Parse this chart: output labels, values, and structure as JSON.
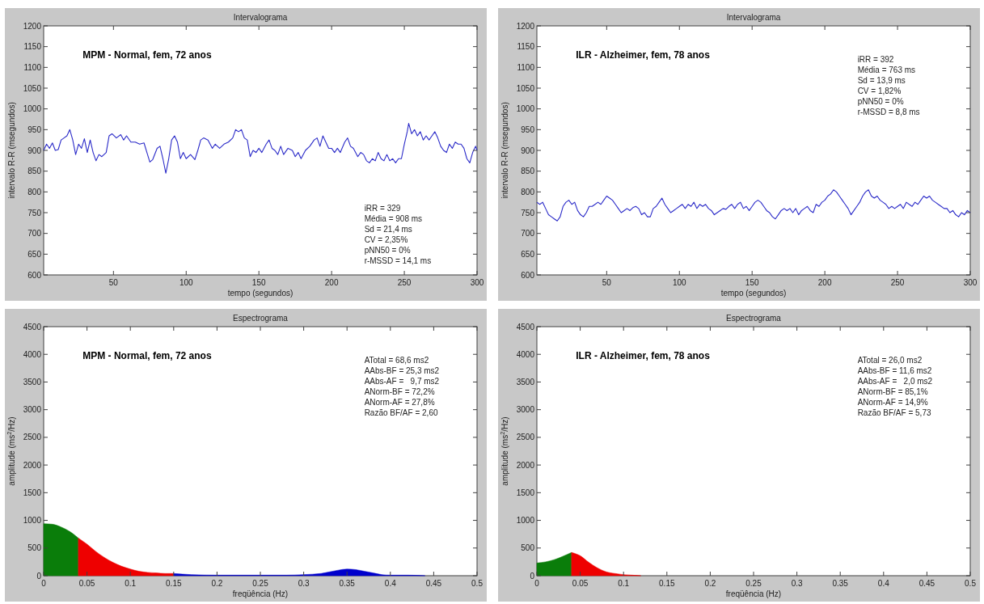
{
  "chart_data": [
    {
      "type": "line",
      "title": "Intervalograma",
      "xlabel": "tempo (segundos)",
      "ylabel": "intervalo R-R (msegundos)",
      "xlim": [
        2,
        300
      ],
      "xticks": [
        50,
        100,
        150,
        200,
        250,
        300
      ],
      "ylim": [
        600,
        1200
      ],
      "yticks": [
        600,
        650,
        700,
        750,
        800,
        850,
        900,
        950,
        1000,
        1050,
        1100,
        1150,
        1200
      ],
      "annotations": [
        "MPM - Normal, fem, 72 anos",
        "iRR = 329",
        "Média = 908 ms",
        "Sd = 21,4 ms",
        "CV = 2,35%",
        "pNN50 = 0%",
        "r-MSSD = 14,1 ms"
      ],
      "series": [
        {
          "color": "#2a2ac8",
          "x": [
            2,
            4,
            6,
            8,
            10,
            12,
            14,
            16,
            18,
            20,
            22,
            24,
            26,
            28,
            30,
            32,
            34,
            36,
            38,
            40,
            42,
            45,
            47,
            49,
            52,
            55,
            57,
            59,
            62,
            65,
            68,
            71,
            73,
            75,
            77,
            80,
            82,
            84,
            86,
            88,
            90,
            92,
            94,
            96,
            98,
            100,
            103,
            106,
            108,
            110,
            112,
            115,
            118,
            120,
            123,
            126,
            129,
            132,
            134,
            136,
            138,
            140,
            142,
            144,
            146,
            148,
            150,
            152,
            155,
            157,
            159,
            161,
            163,
            165,
            167,
            170,
            173,
            175,
            177,
            179,
            182,
            185,
            188,
            190,
            192,
            194,
            196,
            198,
            200,
            202,
            204,
            206,
            209,
            211,
            213,
            215,
            218,
            220,
            222,
            224,
            226,
            228,
            230,
            232,
            234,
            236,
            238,
            240,
            242,
            244,
            246,
            248,
            250,
            252,
            253,
            255,
            257,
            259,
            261,
            263,
            265,
            267,
            269,
            271,
            273,
            275,
            277,
            279,
            281,
            283,
            285,
            287,
            289,
            291,
            293,
            295,
            297,
            299,
            300
          ],
          "values": [
            900,
            915,
            905,
            918,
            900,
            902,
            925,
            930,
            935,
            950,
            925,
            890,
            915,
            905,
            928,
            895,
            925,
            895,
            875,
            890,
            885,
            895,
            935,
            940,
            930,
            938,
            925,
            935,
            920,
            920,
            915,
            918,
            895,
            872,
            878,
            905,
            910,
            880,
            845,
            880,
            925,
            935,
            920,
            880,
            895,
            880,
            890,
            878,
            900,
            925,
            930,
            925,
            905,
            915,
            905,
            915,
            920,
            930,
            950,
            945,
            950,
            930,
            925,
            885,
            900,
            895,
            905,
            895,
            915,
            925,
            905,
            900,
            890,
            910,
            890,
            905,
            900,
            885,
            895,
            880,
            900,
            910,
            925,
            930,
            910,
            935,
            920,
            905,
            905,
            895,
            905,
            895,
            920,
            930,
            910,
            905,
            885,
            895,
            890,
            875,
            870,
            880,
            875,
            895,
            880,
            875,
            890,
            875,
            880,
            870,
            880,
            880,
            915,
            945,
            965,
            940,
            950,
            935,
            945,
            925,
            935,
            925,
            935,
            945,
            930,
            910,
            900,
            895,
            915,
            905,
            920,
            915,
            915,
            905,
            880,
            870,
            895,
            910,
            900
          ]
        }
      ]
    },
    {
      "type": "line",
      "title": "Intervalograma",
      "xlabel": "tempo (segundos)",
      "ylabel": "intervalo R-R (msegundos)",
      "xlim": [
        2,
        300
      ],
      "xticks": [
        50,
        100,
        150,
        200,
        250,
        300
      ],
      "ylim": [
        600,
        1200
      ],
      "yticks": [
        600,
        650,
        700,
        750,
        800,
        850,
        900,
        950,
        1000,
        1050,
        1100,
        1150,
        1200
      ],
      "annotations": [
        "ILR - Alzheimer, fem, 78 anos",
        "iRR = 392",
        "Média = 763 ms",
        "Sd = 13,9 ms",
        "CV = 1,82%",
        "pNN50 = 0%",
        "r-MSSD = 8,8 ms"
      ],
      "series": [
        {
          "color": "#2a2ac8",
          "x": [
            2,
            4,
            6,
            8,
            10,
            12,
            14,
            16,
            18,
            20,
            22,
            24,
            26,
            28,
            30,
            32,
            34,
            36,
            38,
            40,
            42,
            44,
            46,
            48,
            50,
            52,
            54,
            56,
            58,
            60,
            62,
            64,
            66,
            68,
            70,
            72,
            74,
            76,
            78,
            80,
            82,
            84,
            86,
            88,
            90,
            92,
            94,
            96,
            98,
            100,
            102,
            104,
            106,
            108,
            110,
            112,
            114,
            116,
            118,
            120,
            122,
            124,
            126,
            128,
            130,
            132,
            134,
            136,
            138,
            140,
            142,
            144,
            146,
            148,
            150,
            152,
            154,
            156,
            158,
            160,
            162,
            164,
            166,
            168,
            170,
            172,
            174,
            176,
            178,
            180,
            182,
            184,
            186,
            188,
            190,
            192,
            194,
            196,
            198,
            200,
            202,
            204,
            206,
            208,
            210,
            212,
            214,
            216,
            218,
            220,
            222,
            224,
            226,
            228,
            230,
            232,
            234,
            236,
            238,
            240,
            242,
            244,
            246,
            248,
            250,
            252,
            254,
            256,
            258,
            260,
            262,
            264,
            266,
            268,
            270,
            272,
            274,
            276,
            278,
            280,
            282,
            284,
            286,
            288,
            290,
            292,
            294,
            296,
            298,
            300
          ],
          "values": [
            775,
            770,
            775,
            760,
            745,
            740,
            735,
            730,
            740,
            765,
            775,
            780,
            770,
            775,
            755,
            745,
            740,
            750,
            765,
            765,
            770,
            775,
            770,
            780,
            790,
            785,
            780,
            770,
            760,
            750,
            755,
            760,
            755,
            762,
            765,
            760,
            745,
            750,
            740,
            740,
            760,
            765,
            775,
            785,
            770,
            760,
            750,
            755,
            760,
            765,
            770,
            760,
            770,
            765,
            775,
            760,
            770,
            765,
            770,
            760,
            755,
            745,
            750,
            755,
            760,
            758,
            765,
            770,
            760,
            770,
            775,
            760,
            765,
            755,
            765,
            775,
            780,
            775,
            765,
            755,
            750,
            740,
            735,
            745,
            755,
            760,
            755,
            760,
            750,
            760,
            745,
            755,
            760,
            765,
            755,
            750,
            770,
            765,
            775,
            780,
            790,
            795,
            805,
            800,
            790,
            780,
            770,
            760,
            745,
            755,
            765,
            775,
            790,
            800,
            805,
            790,
            785,
            790,
            780,
            775,
            770,
            760,
            765,
            760,
            765,
            770,
            760,
            775,
            770,
            765,
            775,
            770,
            780,
            790,
            785,
            790,
            780,
            775,
            770,
            765,
            760,
            760,
            750,
            755,
            745,
            740,
            750,
            745,
            755,
            750
          ]
        }
      ]
    },
    {
      "type": "area",
      "title": "Espectrograma",
      "xlabel": "freqüência (Hz)",
      "ylabel": "amplitude (ms$^{2}$/Hz)",
      "xlim": [
        0,
        0.5
      ],
      "xticks": [
        0,
        0.05,
        0.1,
        0.15,
        0.2,
        0.25,
        0.3,
        0.35,
        0.4,
        0.45,
        0.5
      ],
      "ylim": [
        0,
        4500
      ],
      "yticks": [
        0,
        500,
        1000,
        1500,
        2000,
        2500,
        3000,
        3500,
        4000,
        4500
      ],
      "annotations": [
        "MPM - Normal, fem, 72 anos",
        "ATotal = 68,6 ms2",
        "AAbs-BF = 25,3 ms2",
        "AAbs-AF =   9,7 ms2",
        "ANorm-BF = 72,2%",
        "ANorm-AF = 27,8%",
        "Razão BF/AF = 2,60"
      ],
      "series": [
        {
          "color": "#0a7d0a",
          "x": [
            0,
            0.01,
            0.02,
            0.03,
            0.04
          ],
          "values": [
            940,
            930,
            880,
            800,
            680
          ]
        },
        {
          "color": "#ee0000",
          "x": [
            0.04,
            0.05,
            0.06,
            0.07,
            0.08,
            0.09,
            0.1,
            0.11,
            0.12,
            0.13,
            0.14,
            0.15
          ],
          "values": [
            680,
            570,
            440,
            330,
            240,
            170,
            120,
            80,
            60,
            50,
            40,
            40
          ]
        },
        {
          "color": "#0000cc",
          "x": [
            0.15,
            0.17,
            0.2,
            0.25,
            0.28,
            0.3,
            0.32,
            0.33,
            0.34,
            0.35,
            0.36,
            0.37,
            0.38,
            0.39,
            0.4,
            0.42,
            0.44
          ],
          "values": [
            40,
            20,
            10,
            10,
            10,
            20,
            40,
            70,
            100,
            120,
            110,
            80,
            50,
            20,
            10,
            10,
            0
          ]
        }
      ]
    },
    {
      "type": "area",
      "title": "Espectrograma",
      "xlabel": "freqüência (Hz)",
      "ylabel": "amplitude (ms$^{2}$/Hz)",
      "xlim": [
        0,
        0.5
      ],
      "xticks": [
        0,
        0.05,
        0.1,
        0.15,
        0.2,
        0.25,
        0.3,
        0.35,
        0.4,
        0.45,
        0.5
      ],
      "ylim": [
        0,
        4500
      ],
      "yticks": [
        0,
        500,
        1000,
        1500,
        2000,
        2500,
        3000,
        3500,
        4000,
        4500
      ],
      "annotations": [
        "ILR - Alzheimer, fem, 78 anos",
        "ATotal = 26,0 ms2",
        "AAbs-BF = 11,6 ms2",
        "AAbs-AF =   2,0 ms2",
        "ANorm-BF = 85,1%",
        "ANorm-AF = 14,9%",
        "Razão BF/AF = 5,73"
      ],
      "series": [
        {
          "color": "#0a7d0a",
          "x": [
            0,
            0.01,
            0.02,
            0.03,
            0.04
          ],
          "values": [
            230,
            250,
            290,
            350,
            420
          ]
        },
        {
          "color": "#ee0000",
          "x": [
            0.04,
            0.05,
            0.06,
            0.07,
            0.08,
            0.09,
            0.1,
            0.11,
            0.12
          ],
          "values": [
            420,
            360,
            240,
            140,
            70,
            40,
            20,
            10,
            0
          ]
        }
      ]
    }
  ]
}
